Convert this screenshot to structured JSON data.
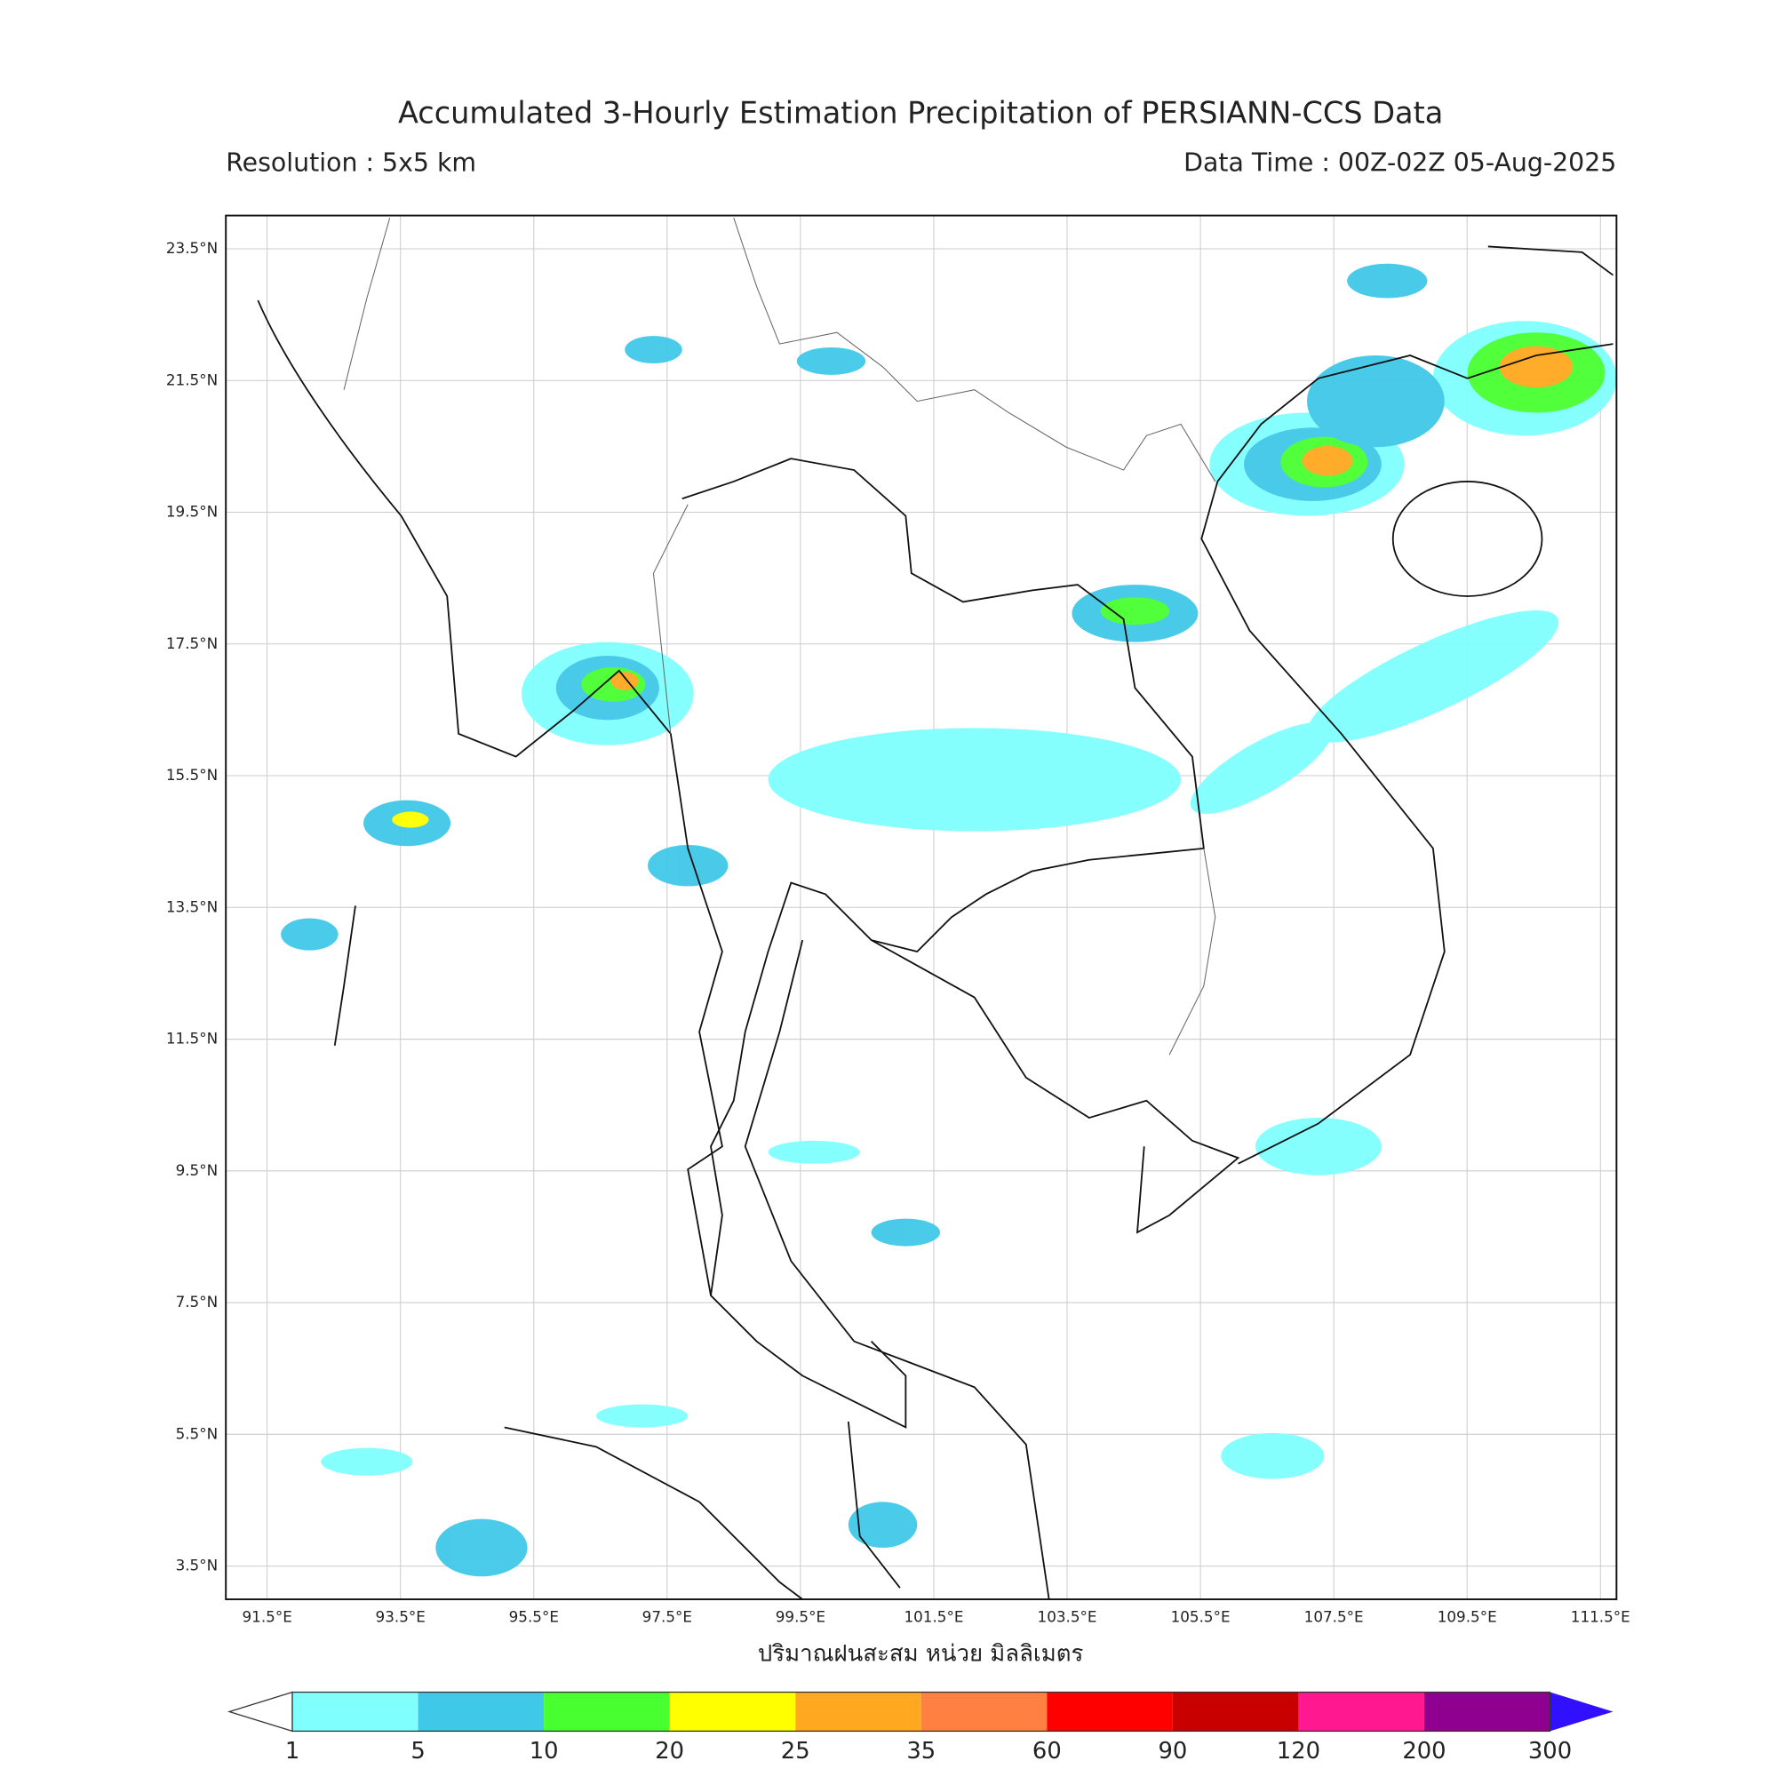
{
  "title": "Accumulated 3-Hourly Estimation Precipitation of PERSIANN-CCS Data",
  "subtitle_left": "Resolution : 5x5 km",
  "subtitle_right": "Data Time : 00Z-02Z 05-Aug-2025",
  "lat_labels": [
    "23.5°N",
    "21.5°N",
    "19.5°N",
    "17.5°N",
    "15.5°N",
    "13.5°N",
    "11.5°N",
    "9.5°N",
    "7.5°N",
    "5.5°N",
    "3.5°N"
  ],
  "lon_labels": [
    "91.5°E",
    "93.5°E",
    "95.5°E",
    "97.5°E",
    "99.5°E",
    "101.5°E",
    "103.5°E",
    "105.5°E",
    "107.5°E",
    "109.5°E",
    "111.5°E"
  ],
  "axis_label": "ปริมาณฝนสะสม หน่วย มิลลิเมตร",
  "colorbar": {
    "levels": [
      1,
      5,
      10,
      20,
      25,
      35,
      60,
      90,
      120,
      200,
      300
    ],
    "colors": [
      "#80ffff",
      "#40c8e8",
      "#48ff30",
      "#ffff00",
      "#ffa820",
      "#ff8040",
      "#ff0000",
      "#c80000",
      "#ff1890",
      "#900090",
      "#3010ff"
    ]
  }
}
